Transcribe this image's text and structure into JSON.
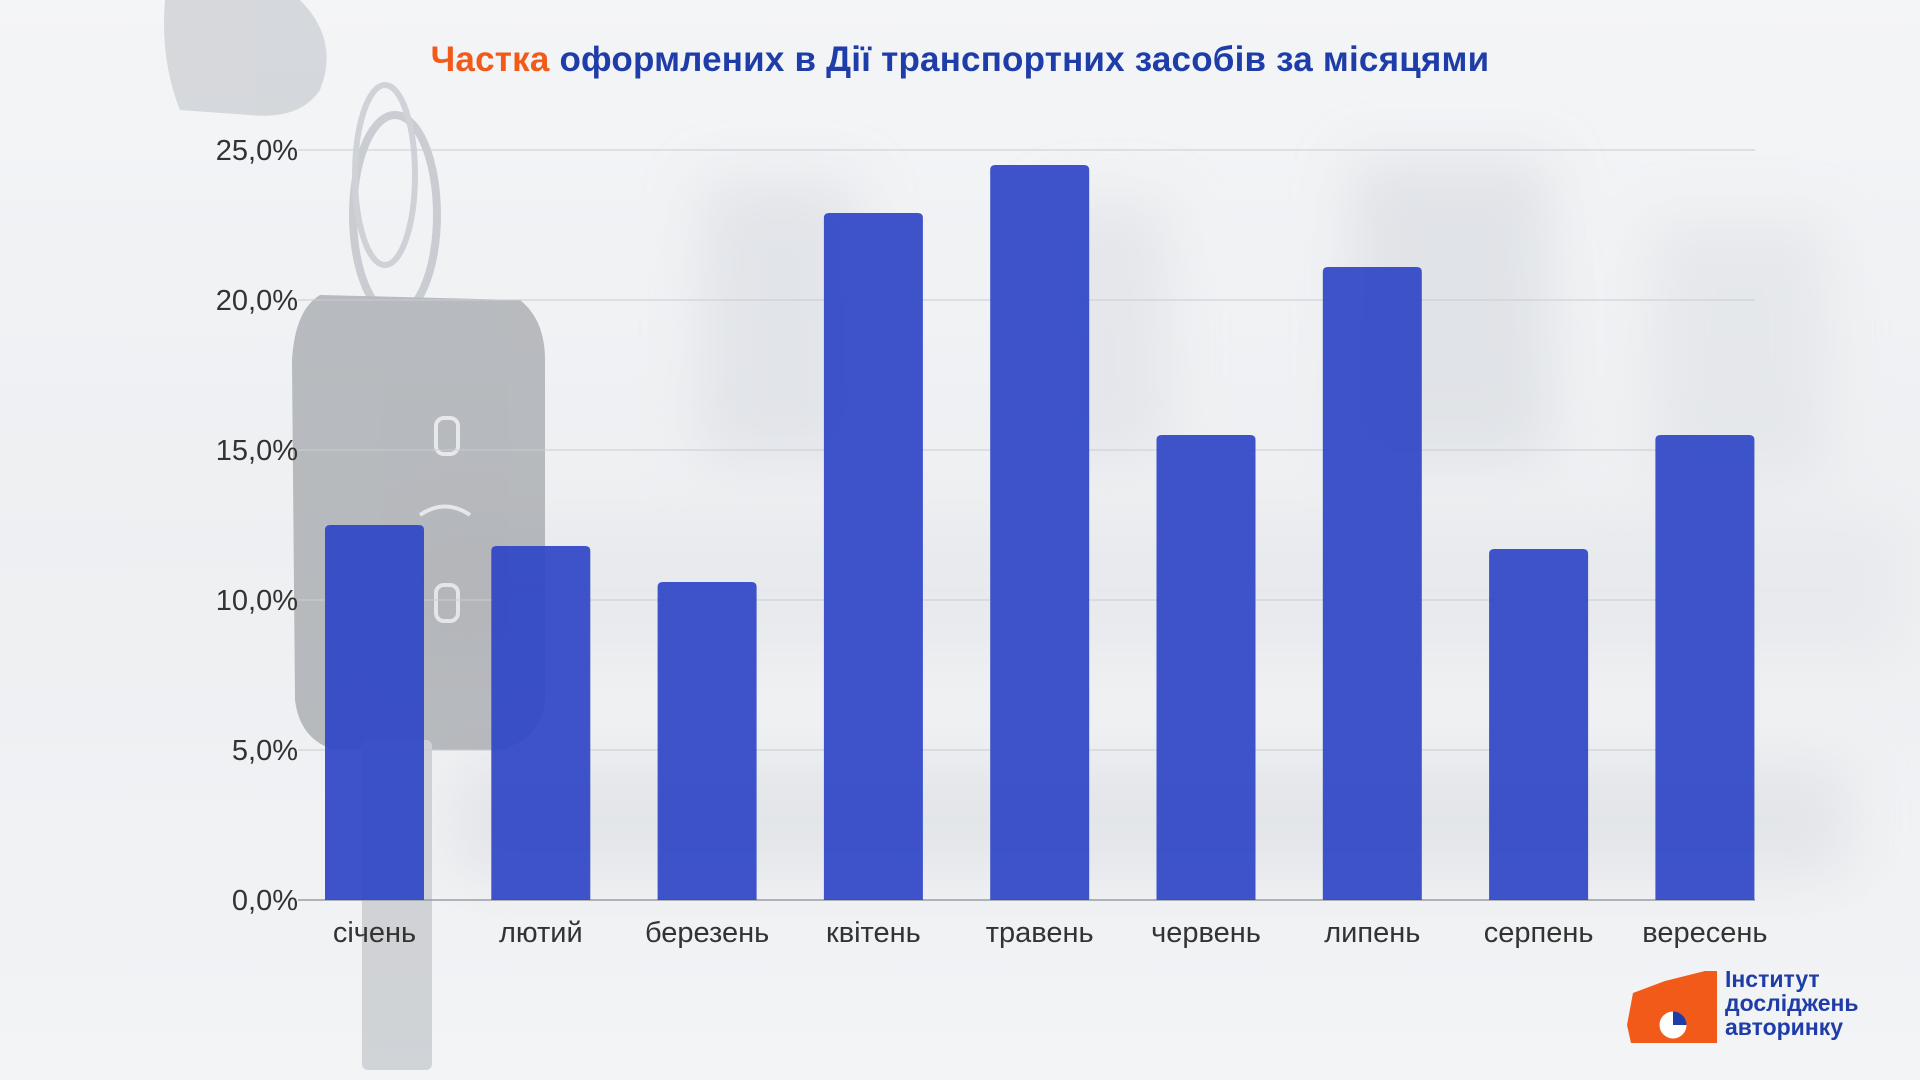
{
  "chart_data": {
    "type": "bar",
    "title_accent": "Частка",
    "title_rest": "оформлених в Дії транспортних засобів за місяцями",
    "categories": [
      "січень",
      "лютий",
      "березень",
      "квітень",
      "травень",
      "червень",
      "липень",
      "серпень",
      "вересень"
    ],
    "values": [
      12.5,
      11.8,
      10.6,
      22.9,
      24.5,
      15.5,
      21.1,
      11.7,
      15.5
    ],
    "ylim": [
      0,
      25
    ],
    "yticks": [
      "0,0%",
      "5,0%",
      "10,0%",
      "15,0%",
      "20,0%",
      "25,0%"
    ],
    "xlabel": "",
    "ylabel": "",
    "grid": true,
    "bar_color": "#2f45c6"
  },
  "logo": {
    "line1": "Інститут",
    "line2": "досліджень",
    "line3": "авторинку"
  },
  "colors": {
    "accent": "#f25a1a",
    "brand": "#1f3da8"
  }
}
